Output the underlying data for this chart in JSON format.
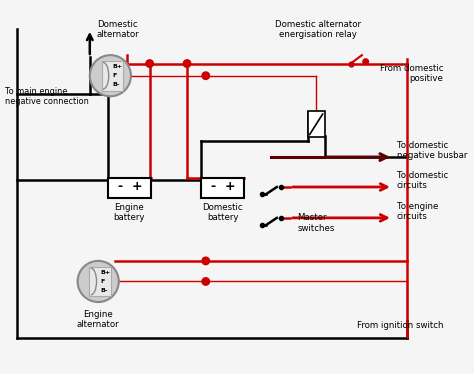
{
  "bg_color": "#f5f5f5",
  "black": "#000000",
  "red": "#cc0000",
  "dark_red": "#5a0000",
  "gray": "#888888",
  "light_gray": "#cccccc",
  "mid_gray": "#aaaaaa",
  "labels": {
    "domestic_alternator": "Domestic\nalternator",
    "engine_alternator": "Engine\nalternator",
    "engine_battery": "Engine\nbattery",
    "domestic_battery": "Domestic\nbattery",
    "master_switches": "Master\nswitches",
    "to_main_engine_neg": "To main engine\nnegative connection",
    "domestic_alt_relay": "Domestic alternator\nenergisation relay",
    "from_domestic_pos": "From domestic\npositive",
    "to_domestic_neg_busbar": "To domestic\nnegative busbar",
    "to_domestic_circuits": "To domestic\ncircuits",
    "to_engine_circuits": "To engine\ncircuits",
    "from_ignition_switch": "From ignition switch"
  },
  "figsize": [
    4.74,
    3.74
  ],
  "dpi": 100
}
